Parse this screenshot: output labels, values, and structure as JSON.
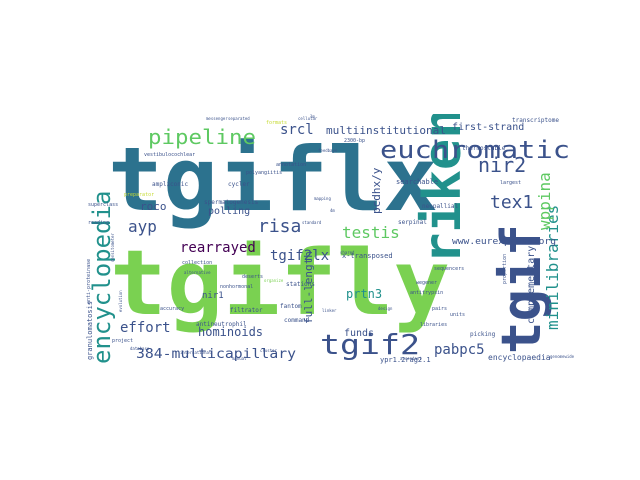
{
  "palette": {
    "teal": "#2c728e",
    "green": "#7ad151",
    "navy": "#3b528b",
    "purple": "#482878",
    "sea": "#21918c",
    "mint": "#5ec962",
    "yellow": "#c6db33",
    "violet": "#433e85",
    "dark": "#440154"
  },
  "words": [
    {
      "text": "tgiflx",
      "color": "teal"
    },
    {
      "text": "tgifly",
      "color": "green"
    },
    {
      "text": "riken",
      "color": "sea"
    },
    {
      "text": "tgif",
      "color": "navy"
    },
    {
      "text": "euchromatic",
      "color": "navy"
    },
    {
      "text": "encyclopedia",
      "color": "sea"
    },
    {
      "text": "tgif2",
      "color": "navy"
    },
    {
      "text": "pipeline",
      "color": "mint"
    },
    {
      "text": "nir2",
      "color": "navy"
    },
    {
      "text": "tex1",
      "color": "navy"
    },
    {
      "text": "minilibraries",
      "color": "sea"
    },
    {
      "text": "wppina",
      "color": "mint"
    },
    {
      "text": "risa",
      "color": "navy"
    },
    {
      "text": "testis",
      "color": "mint"
    },
    {
      "text": "tgif2lx",
      "color": "navy"
    },
    {
      "text": "rearrayed",
      "color": "dark"
    },
    {
      "text": "ayp",
      "color": "navy"
    },
    {
      "text": "effort",
      "color": "navy"
    },
    {
      "text": "384-multicapillary",
      "color": "navy"
    },
    {
      "text": "pabpc5",
      "color": "navy"
    },
    {
      "text": "hominoids",
      "color": "navy"
    },
    {
      "text": "prtn3",
      "color": "sea"
    },
    {
      "text": "srcl",
      "color": "navy"
    },
    {
      "text": "multiinstitutional",
      "color": "navy"
    },
    {
      "text": "first-strand",
      "color": "navy"
    },
    {
      "text": "full-length",
      "color": "navy"
    },
    {
      "text": "pcdhx/y",
      "color": "navy"
    },
    {
      "text": "complementary",
      "color": "navy"
    },
    {
      "text": "funds",
      "color": "navy"
    },
    {
      "text": "roco",
      "color": "navy"
    },
    {
      "text": "polling",
      "color": "navy"
    },
    {
      "text": "nir1",
      "color": "navy"
    },
    {
      "text": "www.eurexpress.org",
      "color": "navy"
    },
    {
      "text": "x-transposed",
      "color": "navy"
    },
    {
      "text": "encyclopaedia",
      "color": "navy"
    },
    {
      "text": "granulomatosis",
      "color": "navy"
    },
    {
      "text": "ypr1.2rag2.1",
      "color": "navy"
    },
    {
      "text": "searchable",
      "color": "navy"
    },
    {
      "text": "neopallial",
      "color": "navy"
    },
    {
      "text": "spermatogenesis",
      "color": "navy"
    },
    {
      "text": "ampliconic",
      "color": "navy"
    },
    {
      "text": "cycler",
      "color": "navy"
    },
    {
      "text": "filtrator",
      "color": "navy"
    },
    {
      "text": "antineutrophil",
      "color": "navy"
    },
    {
      "text": "stations",
      "color": "navy"
    },
    {
      "text": "command",
      "color": "navy"
    },
    {
      "text": "fantom",
      "color": "navy"
    },
    {
      "text": "deserts",
      "color": "navy"
    },
    {
      "text": "nonhormonal",
      "color": "navy"
    },
    {
      "text": "collection",
      "color": "navy"
    },
    {
      "text": "project",
      "color": "navy"
    },
    {
      "text": "accuracy",
      "color": "navy"
    },
    {
      "text": "picking",
      "color": "navy"
    },
    {
      "text": "serpinal",
      "color": "navy"
    },
    {
      "text": "transcriptome",
      "color": "navy"
    },
    {
      "text": "thermostable",
      "color": "navy"
    },
    {
      "text": "anti-proteinase",
      "color": "navy"
    },
    {
      "text": "vestibulocochlear",
      "color": "navy"
    },
    {
      "text": "polyangiitis",
      "color": "navy"
    },
    {
      "text": "superclass",
      "color": "navy"
    },
    {
      "text": "reading",
      "color": "navy"
    },
    {
      "text": "units",
      "color": "navy"
    },
    {
      "text": "largest",
      "color": "navy"
    },
    {
      "text": "libraries",
      "color": "navy"
    },
    {
      "text": "antitrypsin",
      "color": "navy"
    },
    {
      "text": "sequencers",
      "color": "navy"
    },
    {
      "text": "wegener",
      "color": "navy"
    },
    {
      "text": "proportion",
      "color": "navy"
    },
    {
      "text": "pairs",
      "color": "navy"
    },
    {
      "text": "annotation",
      "color": "navy"
    },
    {
      "text": "evolution",
      "color": "navy"
    },
    {
      "text": "design",
      "color": "navy"
    },
    {
      "text": "alternative",
      "color": "navy"
    },
    {
      "text": "organize",
      "color": "green"
    },
    {
      "text": "preparator",
      "color": "yellow"
    },
    {
      "text": "densitometer",
      "color": "navy"
    },
    {
      "text": "feedbays",
      "color": "navy"
    },
    {
      "text": "mapping",
      "color": "navy"
    },
    {
      "text": "standard",
      "color": "navy"
    },
    {
      "text": "messenger",
      "color": "navy"
    },
    {
      "text": "separated",
      "color": "navy"
    },
    {
      "text": "formats",
      "color": "yellow"
    },
    {
      "text": "cellular",
      "color": "navy"
    },
    {
      "text": "international",
      "color": "navy"
    },
    {
      "text": "genomewide",
      "color": "navy"
    },
    {
      "text": "ascendant",
      "color": "navy"
    },
    {
      "text": "manual",
      "color": "navy"
    },
    {
      "text": "database",
      "color": "navy"
    },
    {
      "text": "cluster",
      "color": "navy"
    },
    {
      "text": "linker",
      "color": "navy"
    },
    {
      "text": "shared",
      "color": "navy"
    },
    {
      "text": "1m",
      "color": "navy"
    },
    {
      "text": "2300-bp",
      "color": "navy"
    },
    {
      "text": "4m",
      "color": "navy"
    }
  ]
}
